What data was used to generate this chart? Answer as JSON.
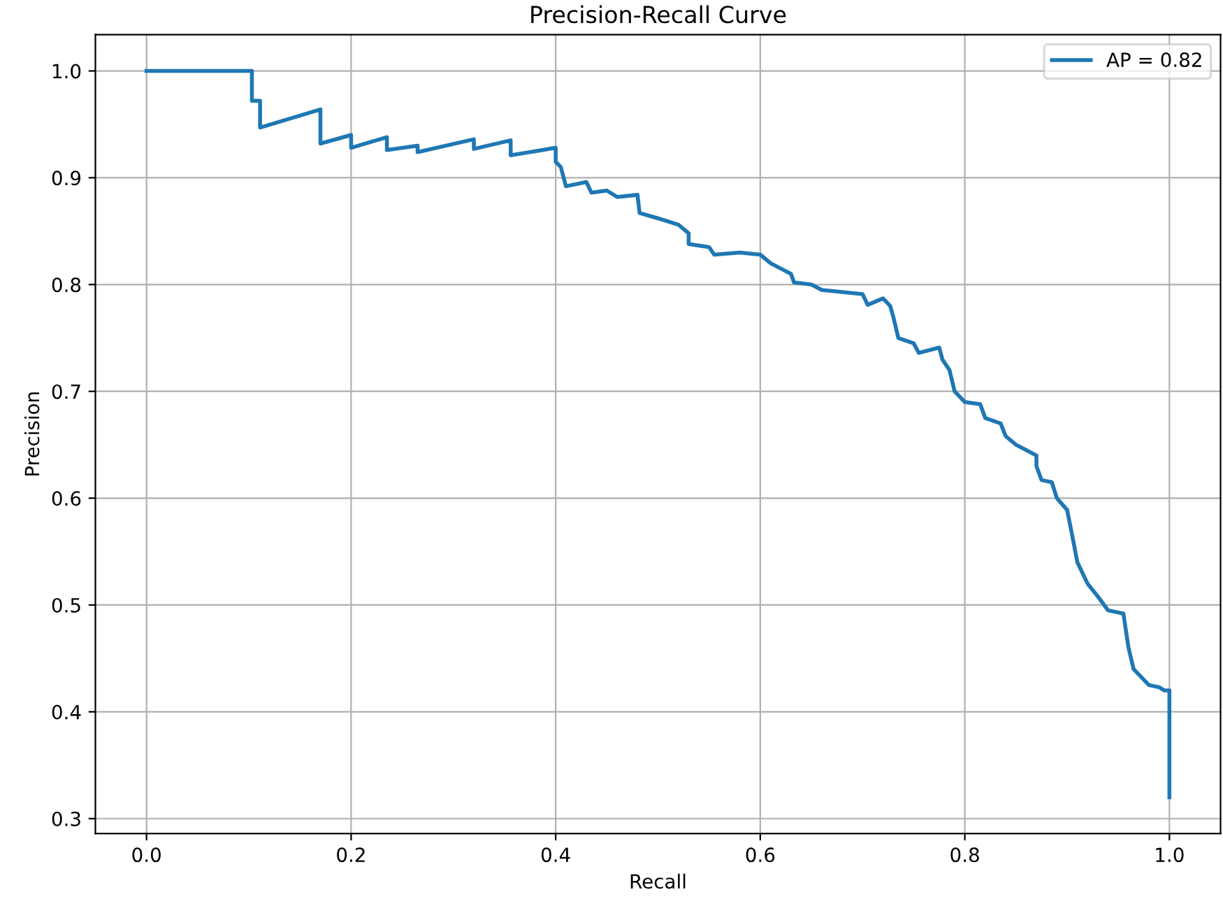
{
  "chart_data": {
    "type": "line",
    "title": "Precision-Recall Curve",
    "xlabel": "Recall",
    "ylabel": "Precision",
    "xlim": [
      -0.05,
      1.05
    ],
    "ylim": [
      0.286,
      1.034
    ],
    "xticks": [
      {
        "value": 0,
        "label": "0.0"
      },
      {
        "value": 0.2,
        "label": "0.2"
      },
      {
        "value": 0.4,
        "label": "0.4"
      },
      {
        "value": 0.6,
        "label": "0.6"
      },
      {
        "value": 0.8,
        "label": "0.8"
      },
      {
        "value": 1,
        "label": "1.0"
      }
    ],
    "yticks": [
      {
        "value": 0.3,
        "label": "0.3"
      },
      {
        "value": 0.4,
        "label": "0.4"
      },
      {
        "value": 0.5,
        "label": "0.5"
      },
      {
        "value": 0.6,
        "label": "0.6"
      },
      {
        "value": 0.7,
        "label": "0.7"
      },
      {
        "value": 0.8,
        "label": "0.8"
      },
      {
        "value": 0.9,
        "label": "0.9"
      },
      {
        "value": 1,
        "label": "1.0"
      }
    ],
    "grid": true,
    "legend": "top right",
    "line_style": "solid",
    "marker": "none",
    "series": [
      {
        "name": "AP = 0.82",
        "color": "#1f77b4",
        "x": [
          0,
          0.103,
          0.103,
          0.111,
          0.111,
          0.17,
          0.17,
          0.2,
          0.2,
          0.235,
          0.235,
          0.265,
          0.265,
          0.32,
          0.32,
          0.356,
          0.356,
          0.4,
          0.4,
          0.405,
          0.41,
          0.43,
          0.435,
          0.45,
          0.46,
          0.48,
          0.482,
          0.5,
          0.52,
          0.53,
          0.53,
          0.55,
          0.555,
          0.58,
          0.6,
          0.61,
          0.62,
          0.63,
          0.633,
          0.65,
          0.66,
          0.68,
          0.7,
          0.705,
          0.72,
          0.727,
          0.73,
          0.735,
          0.75,
          0.755,
          0.775,
          0.778,
          0.785,
          0.79,
          0.8,
          0.815,
          0.82,
          0.835,
          0.84,
          0.85,
          0.86,
          0.87,
          0.87,
          0.875,
          0.885,
          0.89,
          0.9,
          0.905,
          0.91,
          0.92,
          0.93,
          0.94,
          0.955,
          0.96,
          0.965,
          0.97,
          0.98,
          0.99,
          0.995,
          1.0,
          1.0
        ],
        "values": [
          1.0,
          1.0,
          0.972,
          0.972,
          0.947,
          0.964,
          0.932,
          0.94,
          0.928,
          0.938,
          0.926,
          0.93,
          0.924,
          0.936,
          0.927,
          0.935,
          0.921,
          0.928,
          0.915,
          0.91,
          0.892,
          0.896,
          0.886,
          0.888,
          0.882,
          0.884,
          0.867,
          0.862,
          0.856,
          0.848,
          0.838,
          0.835,
          0.828,
          0.83,
          0.828,
          0.82,
          0.815,
          0.81,
          0.802,
          0.8,
          0.795,
          0.793,
          0.791,
          0.781,
          0.787,
          0.78,
          0.77,
          0.75,
          0.745,
          0.736,
          0.741,
          0.73,
          0.72,
          0.7,
          0.69,
          0.688,
          0.675,
          0.67,
          0.658,
          0.65,
          0.645,
          0.64,
          0.63,
          0.617,
          0.615,
          0.6,
          0.589,
          0.565,
          0.54,
          0.52,
          0.508,
          0.495,
          0.492,
          0.46,
          0.44,
          0.435,
          0.425,
          0.423,
          0.42,
          0.42,
          0.32
        ]
      }
    ]
  }
}
